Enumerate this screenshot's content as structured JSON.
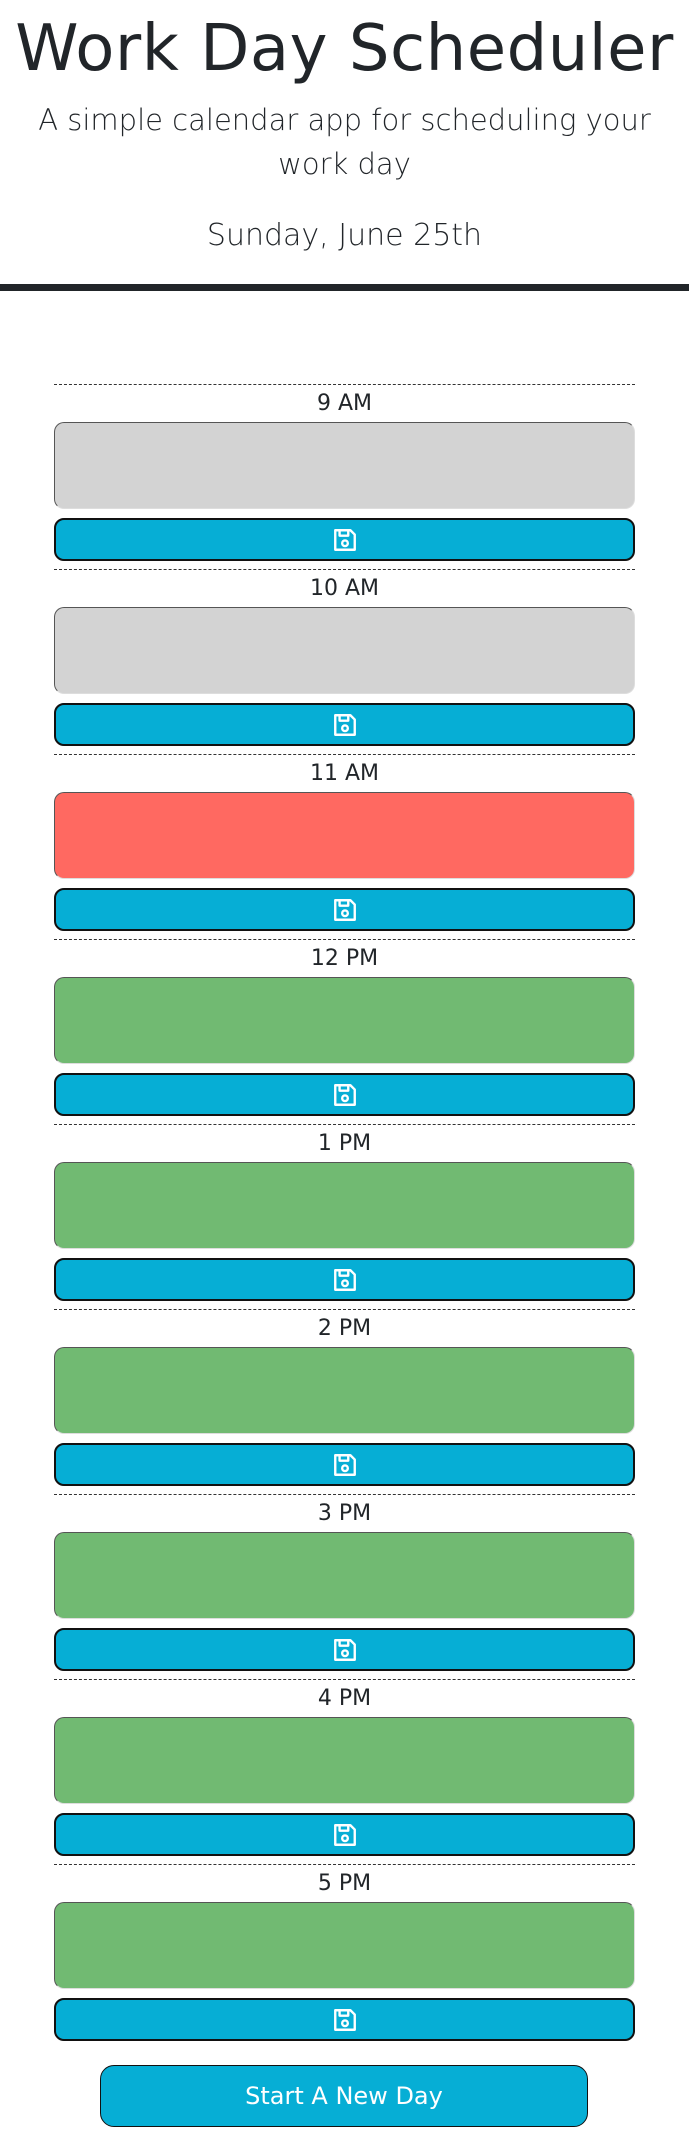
{
  "header": {
    "title": "Work Day Scheduler",
    "subtitle": "A simple calendar app for scheduling your work day",
    "current_day": "Sunday, June 25th"
  },
  "colors": {
    "past": "#d3d3d3",
    "present": "#ff6961",
    "future": "#71ba72",
    "save_button": "#06aed5",
    "rule": "#212529"
  },
  "save_icon": "floppy-disk-icon",
  "time_blocks": [
    {
      "hour": "9 AM",
      "state": "past",
      "text": ""
    },
    {
      "hour": "10 AM",
      "state": "past",
      "text": ""
    },
    {
      "hour": "11 AM",
      "state": "present",
      "text": ""
    },
    {
      "hour": "12 PM",
      "state": "future",
      "text": ""
    },
    {
      "hour": "1 PM",
      "state": "future",
      "text": ""
    },
    {
      "hour": "2 PM",
      "state": "future",
      "text": ""
    },
    {
      "hour": "3 PM",
      "state": "future",
      "text": ""
    },
    {
      "hour": "4 PM",
      "state": "future",
      "text": ""
    },
    {
      "hour": "5 PM",
      "state": "future",
      "text": ""
    }
  ],
  "new_day_button": {
    "label": "Start A New Day"
  }
}
